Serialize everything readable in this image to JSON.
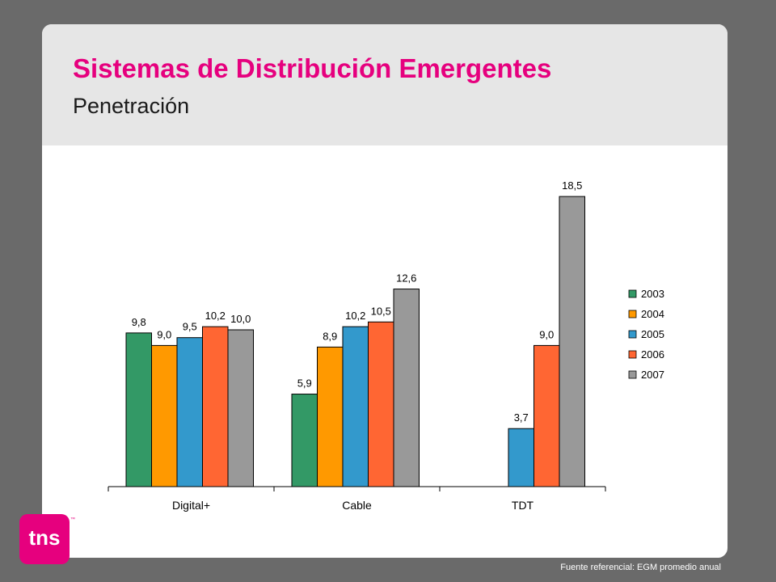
{
  "slide": {
    "title": "Sistemas de Distribución Emergentes",
    "subtitle": "Penetración"
  },
  "logo": {
    "text": "tns",
    "tm": "™"
  },
  "source": "Fuente referencial: EGM  promedio anual",
  "colors": {
    "2003": "#339966",
    "2004": "#ff9900",
    "2005": "#3399cc",
    "2006": "#ff6633",
    "2007": "#999999",
    "title": "#e6007e"
  },
  "chart_data": {
    "type": "bar",
    "categories": [
      "Digital+",
      "Cable",
      "TDT"
    ],
    "series": [
      {
        "name": "2003",
        "values": [
          9.8,
          5.9,
          null
        ],
        "labels": [
          "9,8",
          "5,9",
          null
        ]
      },
      {
        "name": "2004",
        "values": [
          9.0,
          8.9,
          null
        ],
        "labels": [
          "9,0",
          "8,9",
          null
        ]
      },
      {
        "name": "2005",
        "values": [
          9.5,
          10.2,
          3.7
        ],
        "labels": [
          "9,5",
          "10,2",
          "3,7"
        ]
      },
      {
        "name": "2006",
        "values": [
          10.2,
          10.5,
          9.0
        ],
        "labels": [
          "10,2",
          "10,5",
          "9,0"
        ]
      },
      {
        "name": "2007",
        "values": [
          10.0,
          12.6,
          18.5
        ],
        "labels": [
          "10,0",
          "12,6",
          "18,5"
        ]
      }
    ],
    "ylim": [
      0,
      20
    ],
    "grid": false,
    "legend": "right"
  }
}
